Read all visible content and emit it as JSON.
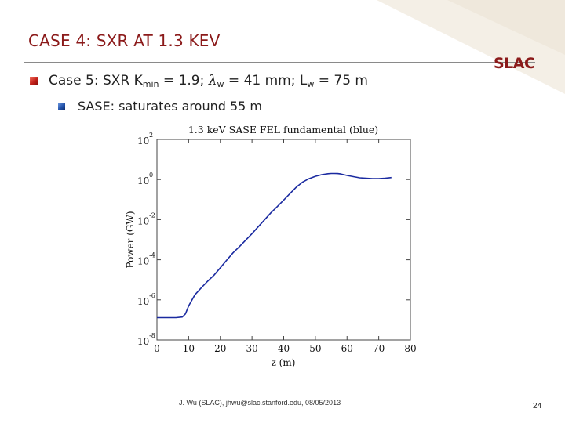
{
  "slide": {
    "title": "CASE 4: SXR AT 1.3 KEV",
    "logo": "SLAC",
    "bullet1": {
      "prefix": "Case 5: SXR K",
      "k_sub": "min",
      "k_value": " = 1.9; ",
      "lambda": "λ",
      "lambda_sub": "w",
      "lambda_value": " = 41 mm; L",
      "l_sub": "w",
      "l_value": " = 75 m"
    },
    "bullet2": "SASE: saturates around 55 m",
    "footer": "J. Wu (SLAC), jhwu@slac.stanford.edu, 08/05/2013",
    "page_number": "24",
    "accent_color": "#8b1a1a",
    "corner_color": "#f4efe6"
  },
  "chart_data": {
    "type": "line",
    "title": "1.3 keV SASE FEL fundamental (blue)",
    "xlabel": "z (m)",
    "ylabel": "Power (GW)",
    "xlim": [
      0,
      80
    ],
    "ylim_log10": [
      -8,
      2
    ],
    "y_scale": "log",
    "x_ticks": [
      "0",
      "10",
      "20",
      "30",
      "40",
      "50",
      "60",
      "70",
      "80"
    ],
    "y_ticks": [
      {
        "base": "10",
        "exp": "2"
      },
      {
        "base": "10",
        "exp": "0"
      },
      {
        "base": "10",
        "exp": "-2"
      },
      {
        "base": "10",
        "exp": "-4"
      },
      {
        "base": "10",
        "exp": "-6"
      },
      {
        "base": "10",
        "exp": "-8"
      }
    ],
    "grid": false,
    "series": [
      {
        "color": "#1a2aa0",
        "x": [
          0,
          3,
          6,
          8,
          9,
          10,
          12,
          14,
          16,
          18,
          20,
          22,
          24,
          26,
          28,
          30,
          32,
          34,
          36,
          38,
          40,
          42,
          44,
          46,
          48,
          50,
          52,
          54,
          55,
          56,
          57,
          58,
          60,
          62,
          64,
          66,
          68,
          70,
          72,
          74
        ],
        "y": [
          1.3e-07,
          1.3e-07,
          1.3e-07,
          1.4e-07,
          2e-07,
          5e-07,
          1.8e-06,
          4e-06,
          8.5e-06,
          1.7e-05,
          4e-05,
          9.5e-05,
          0.00022,
          0.00045,
          0.00095,
          0.002,
          0.0045,
          0.01,
          0.022,
          0.045,
          0.095,
          0.2,
          0.42,
          0.75,
          1.1,
          1.45,
          1.75,
          1.95,
          2.0,
          2.0,
          1.98,
          1.9,
          1.6,
          1.4,
          1.22,
          1.15,
          1.1,
          1.1,
          1.15,
          1.25
        ]
      }
    ]
  }
}
